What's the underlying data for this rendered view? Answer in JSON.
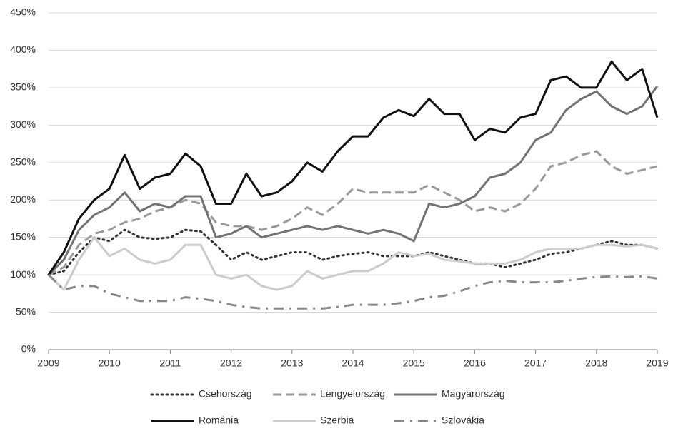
{
  "chart_data": {
    "type": "line",
    "x": [
      2009,
      2009.25,
      2009.5,
      2009.75,
      2010,
      2010.25,
      2010.5,
      2010.75,
      2011,
      2011.25,
      2011.5,
      2011.75,
      2012,
      2012.25,
      2012.5,
      2012.75,
      2013,
      2013.25,
      2013.5,
      2013.75,
      2014,
      2014.25,
      2014.5,
      2014.75,
      2015,
      2015.25,
      2015.5,
      2015.75,
      2016,
      2016.25,
      2016.5,
      2016.75,
      2017,
      2017.25,
      2017.5,
      2017.75,
      2018,
      2018.25,
      2018.5,
      2018.75,
      2019
    ],
    "xlim": [
      2009,
      2019
    ],
    "xticks": [
      2009,
      2010,
      2011,
      2012,
      2013,
      2014,
      2015,
      2016,
      2017,
      2018,
      2019
    ],
    "ylim": [
      0,
      450
    ],
    "yticks": [
      {
        "value": 0,
        "label": "0%"
      },
      {
        "value": 50,
        "label": "50%"
      },
      {
        "value": 100,
        "label": "100%"
      },
      {
        "value": 150,
        "label": "150%"
      },
      {
        "value": 200,
        "label": "200%"
      },
      {
        "value": 250,
        "label": "250%"
      },
      {
        "value": 300,
        "label": "300%"
      },
      {
        "value": 350,
        "label": "350%"
      },
      {
        "value": 400,
        "label": "400%"
      },
      {
        "value": 450,
        "label": "450%"
      }
    ],
    "grid": true,
    "legend": "bottom",
    "series": [
      {
        "name": "Csehország",
        "color": "#333333",
        "style": "dotted",
        "values": [
          100,
          105,
          130,
          150,
          145,
          160,
          150,
          148,
          150,
          160,
          158,
          140,
          120,
          130,
          120,
          125,
          130,
          130,
          120,
          125,
          128,
          130,
          125,
          125,
          125,
          130,
          125,
          120,
          115,
          115,
          110,
          115,
          120,
          128,
          130,
          135,
          140,
          145,
          140,
          140,
          135
        ]
      },
      {
        "name": "Lengyelország",
        "color": "#9a9a9a",
        "style": "dashed",
        "values": [
          100,
          110,
          140,
          155,
          160,
          170,
          175,
          185,
          190,
          200,
          195,
          170,
          165,
          165,
          160,
          165,
          175,
          190,
          180,
          195,
          215,
          210,
          210,
          210,
          210,
          220,
          210,
          200,
          185,
          190,
          185,
          195,
          215,
          245,
          250,
          260,
          265,
          245,
          235,
          240,
          245
        ]
      },
      {
        "name": "Magyarország",
        "color": "#737373",
        "style": "solid",
        "values": [
          100,
          120,
          160,
          180,
          190,
          210,
          185,
          195,
          190,
          205,
          205,
          150,
          155,
          165,
          150,
          155,
          160,
          165,
          160,
          165,
          160,
          155,
          160,
          155,
          145,
          195,
          190,
          195,
          205,
          230,
          235,
          250,
          280,
          290,
          320,
          335,
          345,
          325,
          315,
          325,
          352
        ]
      },
      {
        "name": "Románia",
        "color": "#111111",
        "style": "solid",
        "values": [
          100,
          130,
          175,
          200,
          215,
          260,
          215,
          230,
          235,
          262,
          245,
          195,
          195,
          235,
          205,
          210,
          225,
          250,
          238,
          265,
          285,
          285,
          310,
          320,
          312,
          335,
          315,
          315,
          280,
          295,
          290,
          310,
          315,
          360,
          365,
          350,
          350,
          385,
          360,
          375,
          310
        ]
      },
      {
        "name": "Szerbia",
        "color": "#cccccc",
        "style": "solid",
        "values": [
          100,
          80,
          120,
          150,
          125,
          135,
          120,
          115,
          120,
          140,
          140,
          100,
          95,
          100,
          85,
          80,
          85,
          105,
          95,
          100,
          105,
          105,
          115,
          130,
          125,
          128,
          120,
          118,
          115,
          115,
          115,
          120,
          130,
          135,
          135,
          135,
          140,
          140,
          138,
          140,
          135
        ]
      },
      {
        "name": "Szlovákia",
        "color": "#888888",
        "style": "dashdot",
        "values": [
          100,
          80,
          85,
          85,
          75,
          70,
          65,
          65,
          65,
          70,
          68,
          65,
          60,
          57,
          55,
          55,
          55,
          55,
          55,
          57,
          60,
          60,
          60,
          62,
          65,
          70,
          72,
          78,
          85,
          90,
          92,
          90,
          90,
          90,
          92,
          95,
          97,
          98,
          97,
          98,
          95
        ]
      }
    ]
  }
}
